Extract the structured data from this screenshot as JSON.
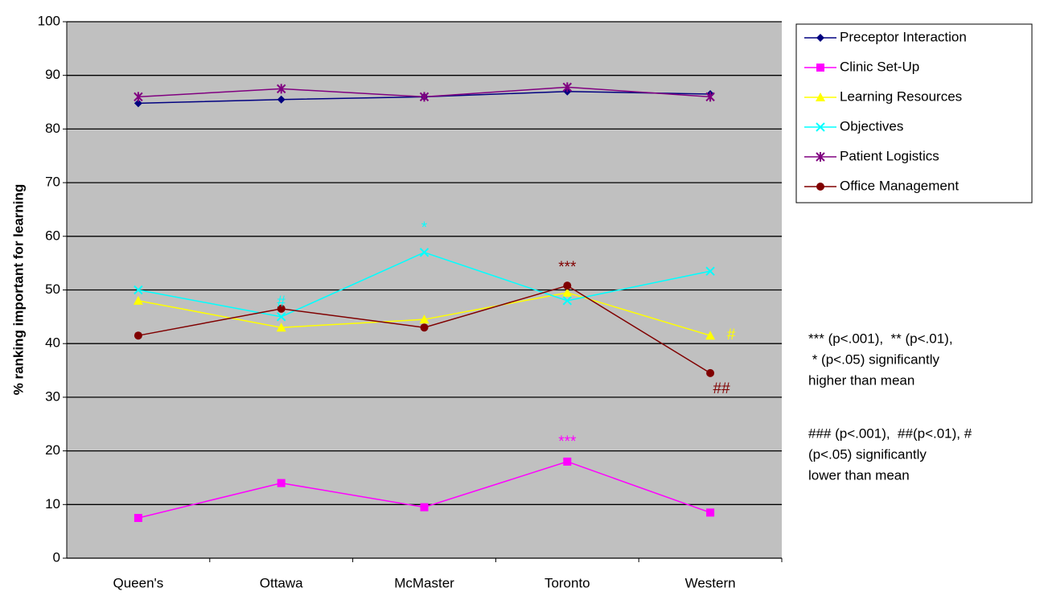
{
  "chart_data": {
    "type": "line",
    "y_label": "% ranking important for learning",
    "categories": [
      "Queen's",
      "Ottawa",
      "McMaster",
      "Toronto",
      "Western"
    ],
    "series": [
      {
        "name": "Preceptor Interaction",
        "color": "#000080",
        "marker": "diamond",
        "values": [
          84.8,
          85.5,
          86,
          87,
          86.5
        ]
      },
      {
        "name": "Clinic Set-Up",
        "color": "#ff00ff",
        "marker": "square",
        "values": [
          7.5,
          14,
          9.5,
          18,
          8.5
        ]
      },
      {
        "name": "Learning Resources",
        "color": "#ffff00",
        "marker": "triangle",
        "values": [
          48,
          43,
          44.5,
          49.5,
          41.5
        ]
      },
      {
        "name": "Objectives",
        "color": "#00ffff",
        "marker": "x",
        "values": [
          50,
          45,
          57,
          48,
          53.5
        ]
      },
      {
        "name": "Patient Logistics",
        "color": "#800080",
        "marker": "star",
        "values": [
          86,
          87.5,
          86,
          87.8,
          86
        ]
      },
      {
        "name": "Office Management",
        "color": "#800000",
        "marker": "circle",
        "values": [
          41.5,
          46.5,
          43,
          50.8,
          34.5
        ]
      }
    ],
    "ylim": [
      0,
      100
    ],
    "yticks": [
      0,
      10,
      20,
      30,
      40,
      50,
      60,
      70,
      80,
      90,
      100
    ],
    "grid": true,
    "legend": "right",
    "annotations": [
      {
        "text": "***",
        "series": 5,
        "category": 3
      },
      {
        "text": "***",
        "series": 1,
        "category": 3
      },
      {
        "text": "#",
        "series": 3,
        "category": 1
      },
      {
        "text": "*",
        "series": 3,
        "category": 2
      },
      {
        "text": "#",
        "series": 2,
        "category": 4
      },
      {
        "text": "##",
        "series": 5,
        "category": 4
      }
    ],
    "notes": [
      [
        "*** (p<.001),  ** (p<.01),",
        " * (p<.05) significantly",
        "higher than mean"
      ],
      [
        "### (p<.001),  ##(p<.01), #",
        "(p<.05) significantly",
        "lower than mean"
      ]
    ]
  }
}
